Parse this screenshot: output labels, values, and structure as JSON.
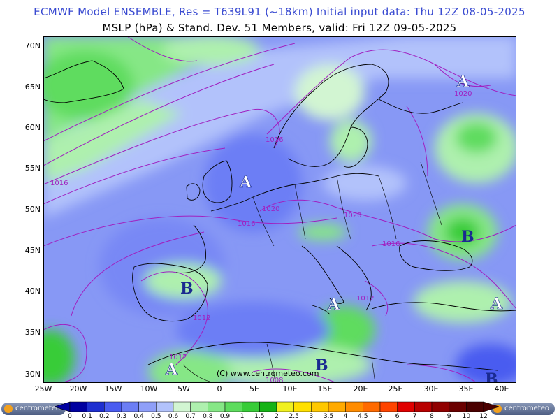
{
  "header": {
    "line1": "ECMWF Model ENSEMBLE, Res = T639L91 (~18km)   Initial input data: Thu 12Z 08-05-2025",
    "line2": "MSLP (hPa) & Stand. Dev.     51 Members, valid: Fri 12Z 09-05-2025"
  },
  "lat_labels": [
    "70N",
    "65N",
    "60N",
    "55N",
    "50N",
    "45N",
    "40N",
    "35N",
    "30N"
  ],
  "lon_labels": [
    "25W",
    "20W",
    "15W",
    "10W",
    "5W",
    "0",
    "5E",
    "10E",
    "15E",
    "20E",
    "25E",
    "30E",
    "35E",
    "40E"
  ],
  "isobar_labels": [
    "1016",
    "1016",
    "1016",
    "1020",
    "1020",
    "1016",
    "1012",
    "1012",
    "1012",
    "1008",
    "1020"
  ],
  "pressure_centers": [
    {
      "letter": "A",
      "type": "high"
    },
    {
      "letter": "A",
      "type": "high"
    },
    {
      "letter": "A",
      "type": "high"
    },
    {
      "letter": "A",
      "type": "high"
    },
    {
      "letter": "A",
      "type": "high"
    },
    {
      "letter": "B",
      "type": "low"
    },
    {
      "letter": "B",
      "type": "low"
    },
    {
      "letter": "B",
      "type": "low"
    },
    {
      "letter": "B",
      "type": "low"
    }
  ],
  "copyright": "(C) www.centrometeo.com",
  "logo_text": "centrometeo",
  "colorbar": {
    "labels": [
      "0",
      "0.1",
      "0.2",
      "0.3",
      "0.4",
      "0.5",
      "0.6",
      "0.7",
      "0.8",
      "0.9",
      "1",
      "1.5",
      "2",
      "2.5",
      "3",
      "3.5",
      "4",
      "4.5",
      "5",
      "6",
      "7",
      "8",
      "9",
      "10",
      "12"
    ],
    "colors": [
      "#0000a0",
      "#1e2fd0",
      "#4a5cf0",
      "#6c7ef5",
      "#8f9ff8",
      "#b2c2fb",
      "#d2f5d2",
      "#aef0ae",
      "#86e786",
      "#5edc5e",
      "#38cc38",
      "#15b315",
      "#f0f020",
      "#ffe000",
      "#ffc800",
      "#ffaa00",
      "#ff8c00",
      "#ff6a00",
      "#ff4400",
      "#e00000",
      "#b80000",
      "#900000",
      "#6a0000",
      "#4a0000"
    ]
  }
}
